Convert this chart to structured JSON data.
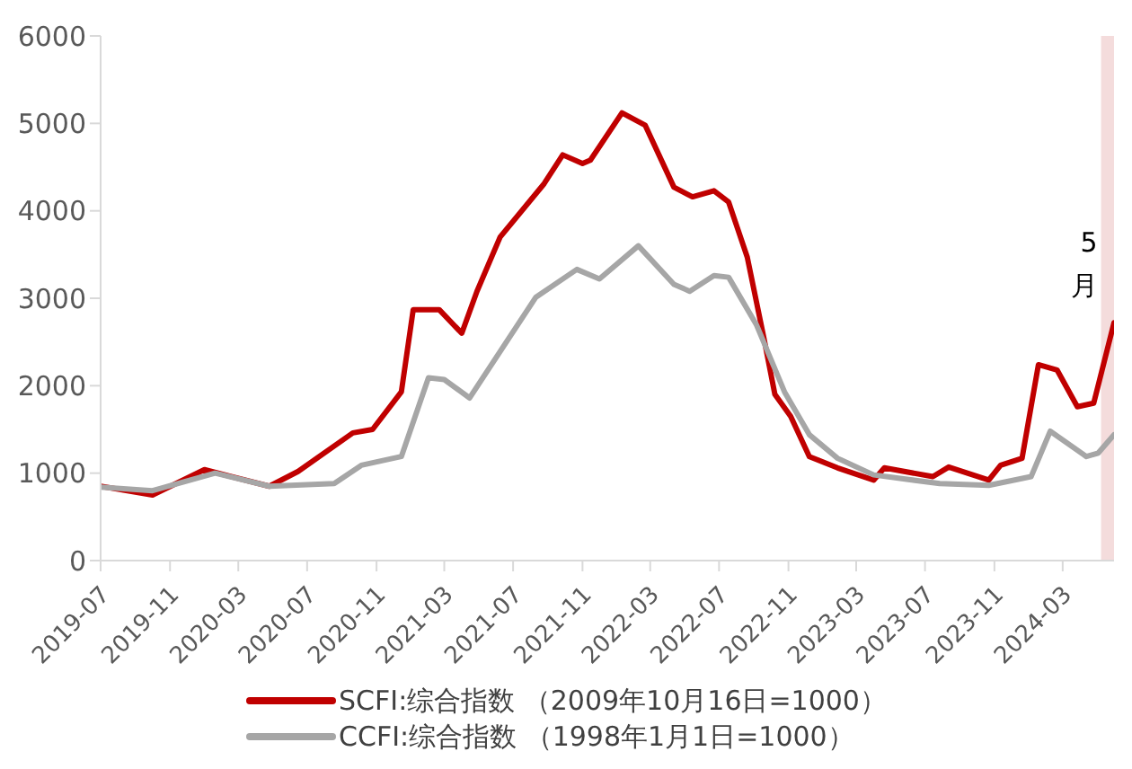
{
  "chart_data": {
    "type": "line",
    "xlim": [
      "2019-07-01",
      "2024-05-31"
    ],
    "xticks": [
      "2019-07",
      "2019-11",
      "2020-03",
      "2020-07",
      "2020-11",
      "2021-03",
      "2021-07",
      "2021-11",
      "2022-03",
      "2022-07",
      "2022-11",
      "2023-03",
      "2023-07",
      "2023-11",
      "2024-03"
    ],
    "ylim": [
      0,
      6000
    ],
    "yticks": [
      0,
      1000,
      2000,
      3000,
      4000,
      5000,
      6000
    ],
    "grid": false,
    "legend": "bottom",
    "marker": "none",
    "line_style": "solid",
    "bands": [
      {
        "axis": "x",
        "from": "2024-05-08",
        "to": "2024-05-31",
        "label": "5月",
        "color": "#f4dcdc"
      }
    ],
    "series": [
      {
        "name": "SCFI:综合指数 （2009年10月16日=1000）",
        "color": "#c00000",
        "x": [
          "2019-07-01",
          "2019-10-01",
          "2020-01-01",
          "2020-04-25",
          "2020-06-15",
          "2020-09-20",
          "2020-10-25",
          "2020-12-15",
          "2021-01-05",
          "2021-02-20",
          "2021-04-01",
          "2021-04-28",
          "2021-06-08",
          "2021-08-25",
          "2021-09-27",
          "2021-11-01",
          "2021-11-15",
          "2022-01-10",
          "2022-02-20",
          "2022-04-12",
          "2022-05-15",
          "2022-06-22",
          "2022-07-18",
          "2022-08-20",
          "2022-09-18",
          "2022-10-08",
          "2022-11-05",
          "2022-12-08",
          "2023-01-27",
          "2023-04-01",
          "2023-04-20",
          "2023-07-15",
          "2023-08-12",
          "2023-10-22",
          "2023-11-12",
          "2023-12-20",
          "2024-01-18",
          "2024-02-20",
          "2024-03-27",
          "2024-04-25",
          "2024-05-31"
        ],
        "values": [
          850,
          750,
          1040,
          850,
          1020,
          1460,
          1500,
          1930,
          2870,
          2870,
          2600,
          3080,
          3700,
          4310,
          4640,
          4540,
          4580,
          5120,
          4980,
          4270,
          4160,
          4230,
          4100,
          3470,
          2560,
          1900,
          1650,
          1190,
          1060,
          920,
          1060,
          960,
          1070,
          920,
          1090,
          1170,
          2240,
          2180,
          1760,
          1800,
          2720
        ]
      },
      {
        "name": "CCFI:综合指数 （1998年1月1日=1000）",
        "color": "#a6a6a6",
        "x": [
          "2019-07-01",
          "2019-10-01",
          "2020-01-20",
          "2020-04-25",
          "2020-08-18",
          "2020-10-05",
          "2020-12-15",
          "2021-02-01",
          "2021-03-01",
          "2021-04-15",
          "2021-08-10",
          "2021-10-22",
          "2021-12-01",
          "2022-02-08",
          "2022-04-12",
          "2022-05-10",
          "2022-06-22",
          "2022-07-18",
          "2022-09-05",
          "2022-10-25",
          "2022-12-08",
          "2023-01-27",
          "2023-04-01",
          "2023-07-27",
          "2023-10-22",
          "2024-01-05",
          "2024-02-08",
          "2024-04-12",
          "2024-05-03",
          "2024-05-31"
        ],
        "values": [
          840,
          800,
          1000,
          850,
          880,
          1090,
          1190,
          2090,
          2070,
          1860,
          3010,
          3330,
          3220,
          3600,
          3160,
          3080,
          3260,
          3240,
          2700,
          1930,
          1440,
          1170,
          980,
          880,
          860,
          960,
          1480,
          1190,
          1230,
          1440
        ]
      }
    ]
  }
}
